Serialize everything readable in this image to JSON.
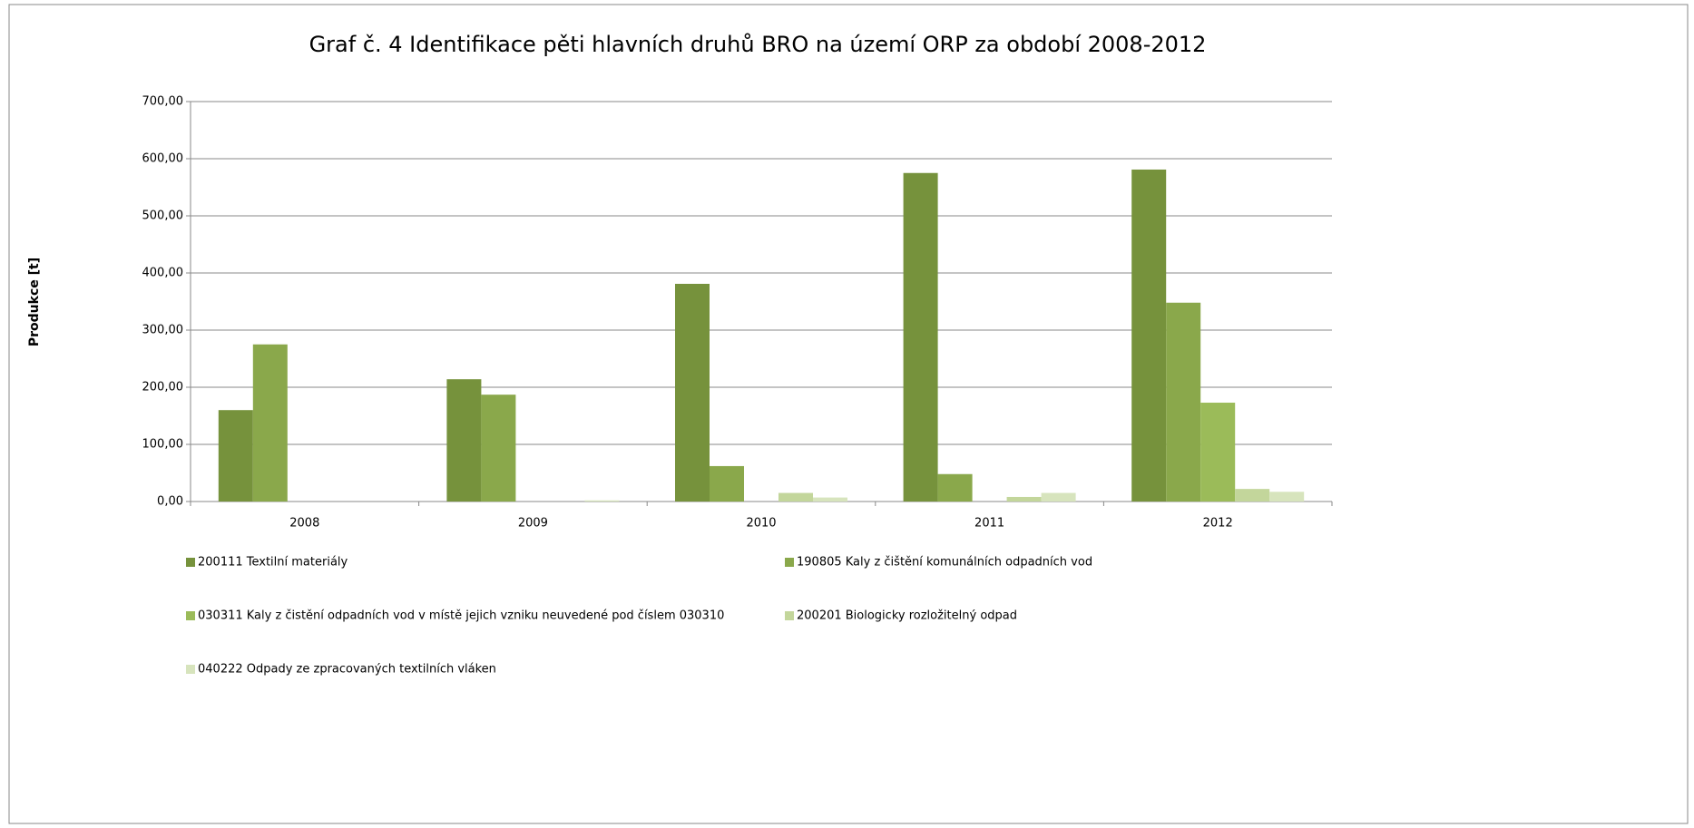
{
  "chart_data": {
    "type": "bar",
    "title": "Graf č. 4 Identifikace pěti hlavních druhů BRO na území ORP za období 2008-2012",
    "y_label": "Produkce [t]",
    "categories": [
      "2008",
      "2009",
      "2010",
      "2011",
      "2012"
    ],
    "series": [
      {
        "name": "200111 Textilní materiály",
        "color": "#76923c",
        "values": [
          160,
          214,
          381,
          575,
          581
        ]
      },
      {
        "name": "190805 Kaly z čištění komunálních odpadních vod",
        "color": "#8aa84b",
        "values": [
          275,
          187,
          62,
          48,
          348
        ]
      },
      {
        "name": "030311 Kaly z čistění odpadních vod v místě jejich vzniku neuvedené pod číslem 030310",
        "color": "#9bbb59",
        "values": [
          0,
          0,
          0,
          0,
          173
        ]
      },
      {
        "name": "200201 Biologicky rozložitelný odpad",
        "color": "#c3d69b",
        "values": [
          0,
          0,
          15,
          8,
          22
        ]
      },
      {
        "name": "040222 Odpady ze zpracovaných textilních vláken",
        "color": "#d7e4bd",
        "values": [
          0,
          2,
          7,
          15,
          17
        ]
      }
    ],
    "ylim": [
      0,
      700
    ],
    "yticks": [
      {
        "value": 0,
        "label": "0,00"
      },
      {
        "value": 100,
        "label": "100,00"
      },
      {
        "value": 200,
        "label": "200,00"
      },
      {
        "value": 300,
        "label": "300,00"
      },
      {
        "value": 400,
        "label": "400,00"
      },
      {
        "value": 500,
        "label": "500,00"
      },
      {
        "value": 600,
        "label": "600,00"
      },
      {
        "value": 700,
        "label": "700,00"
      }
    ],
    "grid": true
  }
}
